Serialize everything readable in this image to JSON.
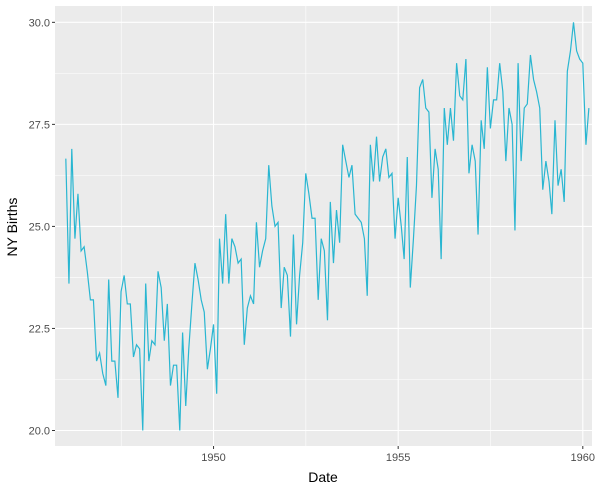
{
  "chart_data": {
    "type": "line",
    "xlabel": "Date",
    "ylabel": "NY Births",
    "x_start": "1946-01",
    "x_frequency": "monthly",
    "xlim": [
      "1945-09-16",
      "1960-04-01"
    ],
    "ylim": [
      19.62,
      30.4
    ],
    "x_ticks": [
      "1950",
      "1955",
      "1960"
    ],
    "x_tick_dates": [
      "1950-01-01",
      "1955-01-01",
      "1960-01-01"
    ],
    "y_ticks": [
      20.0,
      22.5,
      25.0,
      27.5,
      30.0
    ],
    "y_tick_labels": [
      "20.0",
      "22.5",
      "25.0",
      "27.5",
      "30.0"
    ],
    "grid": true,
    "legend": "none",
    "colors": {
      "panel_background": "#ebebeb",
      "grid_major": "#ffffff",
      "line": "#29b6d1"
    },
    "series": [
      {
        "values": [
          26.66,
          23.6,
          26.9,
          24.7,
          25.8,
          24.4,
          24.5,
          23.9,
          23.2,
          23.2,
          21.7,
          21.9,
          21.4,
          21.1,
          23.7,
          21.7,
          21.7,
          20.8,
          23.4,
          23.8,
          23.1,
          23.1,
          21.8,
          22.1,
          22.0,
          20.0,
          23.6,
          21.7,
          22.2,
          22.1,
          23.9,
          23.5,
          22.2,
          23.1,
          21.1,
          21.6,
          21.6,
          20.0,
          22.4,
          20.6,
          22.0,
          23.1,
          24.1,
          23.7,
          23.2,
          22.9,
          21.5,
          22.0,
          22.6,
          20.9,
          24.7,
          23.6,
          25.3,
          23.6,
          24.7,
          24.5,
          24.1,
          24.2,
          22.1,
          23.0,
          23.3,
          23.1,
          25.1,
          24.0,
          24.4,
          24.7,
          26.5,
          25.5,
          25.0,
          25.1,
          23.0,
          24.0,
          23.8,
          22.3,
          24.8,
          22.6,
          23.8,
          24.6,
          26.3,
          25.8,
          25.2,
          25.2,
          23.2,
          24.7,
          24.4,
          22.7,
          25.6,
          24.1,
          25.4,
          24.6,
          27.0,
          26.6,
          26.2,
          26.5,
          25.3,
          25.2,
          25.1,
          24.7,
          23.3,
          27.0,
          26.1,
          27.2,
          26.1,
          26.7,
          26.9,
          26.2,
          26.3,
          24.7,
          25.7,
          25.0,
          24.2,
          26.7,
          23.5,
          24.7,
          26.0,
          28.4,
          28.6,
          27.9,
          27.8,
          25.7,
          26.9,
          26.4,
          24.2,
          27.9,
          27.0,
          27.9,
          27.1,
          29.0,
          28.2,
          28.1,
          29.1,
          26.3,
          27.0,
          26.6,
          24.8,
          27.6,
          26.9,
          28.9,
          27.4,
          28.1,
          28.1,
          29.0,
          28.3,
          26.6,
          27.9,
          27.5,
          24.9,
          29.0,
          26.6,
          27.9,
          28.0,
          29.2,
          28.6,
          28.3,
          27.9,
          25.9,
          26.6,
          26.1,
          25.3,
          27.6,
          26.0,
          26.4,
          25.6,
          28.8,
          29.3,
          30.0,
          29.3,
          29.1,
          29.0,
          27.0,
          27.9
        ]
      }
    ]
  }
}
